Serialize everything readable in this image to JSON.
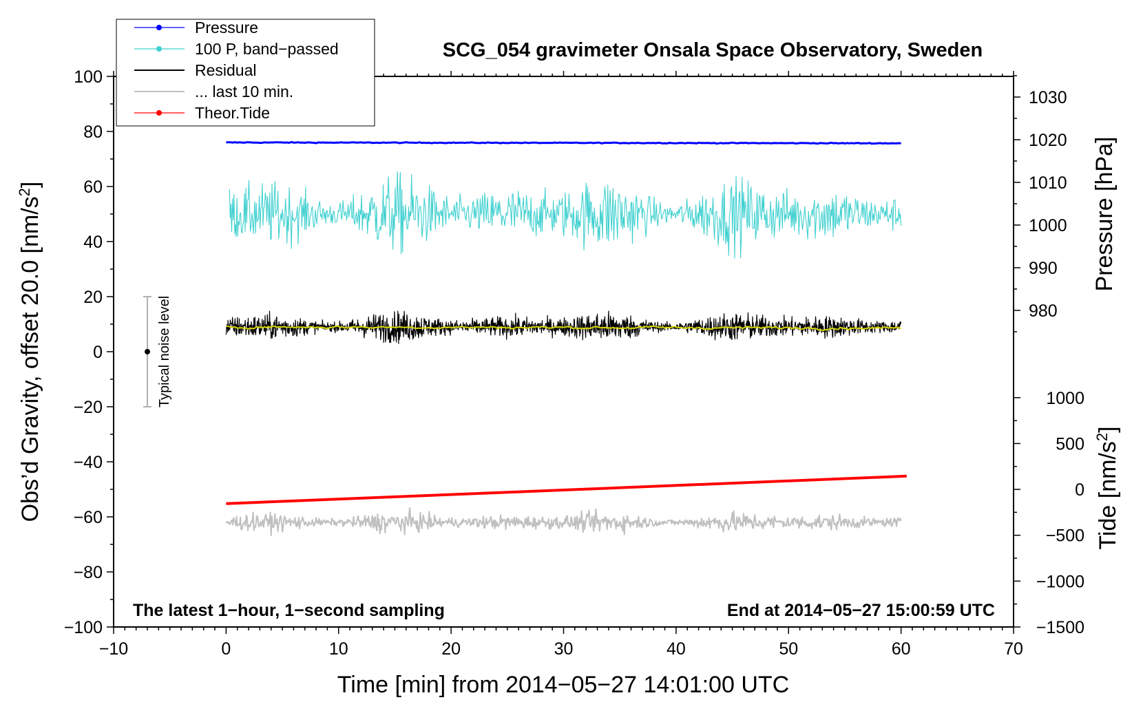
{
  "chart_data": {
    "type": "line",
    "title": "SCG_054 gravimeter Onsala Space Observatory, Sweden",
    "xlabel": "Time [min] from 2014−05−27 14:01:00 UTC",
    "ylabel_left": "Obs’d Gravity, offset 20.0 [nm/s",
    "ylabel_left_sup": "2",
    "ylabel_left_end": "]",
    "ylabel_right_pressure": "Pressure [hPa]",
    "ylabel_right_tide": "Tide [nm/s",
    "ylabel_right_tide_sup": "2",
    "ylabel_right_tide_end": "]",
    "xlim": [
      -10,
      70
    ],
    "ylim": [
      -100,
      100
    ],
    "x_ticks": [
      {
        "value": -10,
        "label": "−10"
      },
      {
        "value": 0,
        "label": "0"
      },
      {
        "value": 10,
        "label": "10"
      },
      {
        "value": 20,
        "label": "20"
      },
      {
        "value": 30,
        "label": "30"
      },
      {
        "value": 40,
        "label": "40"
      },
      {
        "value": 50,
        "label": "50"
      },
      {
        "value": 60,
        "label": "60"
      },
      {
        "value": 70,
        "label": "70"
      }
    ],
    "y_ticks": [
      {
        "value": 100,
        "label": "100"
      },
      {
        "value": 80,
        "label": "80"
      },
      {
        "value": 60,
        "label": "60"
      },
      {
        "value": 40,
        "label": "40"
      },
      {
        "value": 20,
        "label": "20"
      },
      {
        "value": 0,
        "label": "0"
      },
      {
        "value": -20,
        "label": "−20"
      },
      {
        "value": -40,
        "label": "−40"
      },
      {
        "value": -60,
        "label": "−60"
      },
      {
        "value": -80,
        "label": "−80"
      },
      {
        "value": -100,
        "label": "−100"
      }
    ],
    "pressure_axis": {
      "mapping_hPa_to_left": [
        [
          980,
          15
        ],
        [
          1030,
          92.5
        ]
      ],
      "ticks": [
        {
          "value": 1030,
          "label": "1030"
        },
        {
          "value": 1020,
          "label": "1020"
        },
        {
          "value": 1010,
          "label": "1010"
        },
        {
          "value": 1000,
          "label": "1000"
        },
        {
          "value": 990,
          "label": "990"
        },
        {
          "value": 980,
          "label": "980"
        }
      ]
    },
    "tide_axis": {
      "mapping_tide_to_left": [
        [
          -1500,
          -100
        ],
        [
          1000,
          -16.7
        ]
      ],
      "ticks": [
        {
          "value": 1000,
          "label": "1000"
        },
        {
          "value": 500,
          "label": "500"
        },
        {
          "value": 0,
          "label": "0"
        },
        {
          "value": -500,
          "label": "−500"
        },
        {
          "value": -1000,
          "label": "−1000"
        },
        {
          "value": -1500,
          "label": "−1500"
        }
      ]
    },
    "series": [
      {
        "name": "Pressure",
        "color": "#0000ff",
        "kind": "flat",
        "x": [
          0,
          60
        ],
        "level": 76,
        "amplitude": 0.5
      },
      {
        "name": "100 P, band−passed",
        "color": "#40d0d0",
        "kind": "noise",
        "x": [
          0.3,
          60
        ],
        "level": 50,
        "amplitude": 9
      },
      {
        "name": "Residual",
        "color": "#000000",
        "kind": "noise",
        "x": [
          0,
          60
        ],
        "level": 9,
        "amplitude": 3.5
      },
      {
        "name": "... last 10 min.",
        "color": "#c0c0c0",
        "kind": "noise",
        "x": [
          0,
          60
        ],
        "level": -62,
        "amplitude": 2.5
      },
      {
        "name": "Theor.Tide",
        "color": "#ff0000",
        "kind": "line",
        "x": [
          0,
          60.5
        ],
        "y": [
          -55.2,
          -45.2
        ]
      },
      {
        "name": "smoothed residual",
        "color": "#d8d800",
        "kind": "smooth",
        "x": [
          0,
          60
        ],
        "level": 9,
        "amplitude": 0.6
      }
    ],
    "legend": [
      {
        "label": "Pressure",
        "color": "#0000ff",
        "marker": true
      },
      {
        "label": "100 P, band−passed",
        "color": "#40d0d0",
        "marker": true
      },
      {
        "label": "Residual",
        "color": "#000000",
        "marker": false
      },
      {
        "label": "... last 10 min.",
        "color": "#c0c0c0",
        "marker": false
      },
      {
        "label": "Theor.Tide",
        "color": "#ff0000",
        "marker": true
      }
    ],
    "noise_bar": {
      "x": -7,
      "center": 0,
      "range": [
        -20,
        20
      ],
      "label": "Typical noise level"
    },
    "annotations": {
      "bottom_left": "The latest 1−hour, 1−second sampling",
      "bottom_right": "End at 2014−05−27 15:00:59 UTC"
    }
  }
}
